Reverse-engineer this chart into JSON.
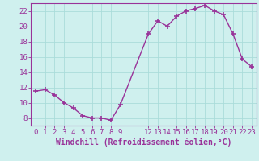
{
  "x": [
    0,
    1,
    2,
    3,
    4,
    5,
    6,
    7,
    8,
    9,
    12,
    13,
    14,
    15,
    16,
    17,
    18,
    19,
    20,
    21,
    22,
    23
  ],
  "y": [
    11.5,
    11.7,
    11.0,
    10.0,
    9.3,
    8.3,
    8.0,
    8.0,
    7.7,
    9.7,
    19.0,
    20.7,
    20.0,
    21.3,
    22.0,
    22.3,
    22.7,
    22.0,
    21.5,
    19.0,
    15.7,
    14.7
  ],
  "line_color": "#993399",
  "marker": "+",
  "marker_size": 4,
  "bg_color": "#cff0ee",
  "grid_color": "#aadcda",
  "xlabel": "Windchill (Refroidissement éolien,°C)",
  "ylim": [
    7,
    23
  ],
  "xlim": [
    -0.5,
    23.5
  ],
  "yticks": [
    8,
    10,
    12,
    14,
    16,
    18,
    20,
    22
  ],
  "xticks": [
    0,
    1,
    2,
    3,
    4,
    5,
    6,
    7,
    8,
    9,
    12,
    13,
    14,
    15,
    16,
    17,
    18,
    19,
    20,
    21,
    22,
    23
  ],
  "tick_color": "#993399",
  "axis_color": "#993399",
  "font_size": 6.5,
  "xlabel_fontsize": 7,
  "linewidth": 1.0
}
